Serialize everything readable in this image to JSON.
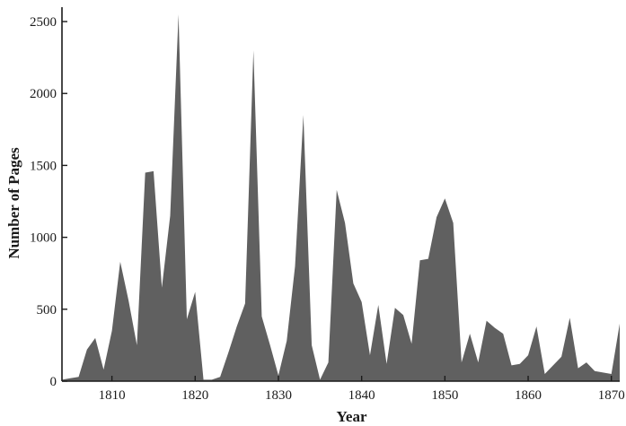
{
  "chart_data": {
    "type": "area",
    "title": "",
    "xlabel": "Year",
    "ylabel": "Number of Pages",
    "xlim": [
      1804,
      1871
    ],
    "ylim": [
      0,
      2600
    ],
    "x_ticks": [
      1810,
      1820,
      1830,
      1840,
      1850,
      1860,
      1870
    ],
    "y_ticks": [
      0,
      500,
      1000,
      1500,
      2000,
      2500
    ],
    "grid": false,
    "legend": "none",
    "fill_color": "#606060",
    "x": [
      1804,
      1805,
      1806,
      1807,
      1808,
      1809,
      1810,
      1811,
      1812,
      1813,
      1814,
      1815,
      1816,
      1817,
      1818,
      1819,
      1820,
      1821,
      1822,
      1823,
      1824,
      1825,
      1826,
      1827,
      1828,
      1829,
      1830,
      1831,
      1832,
      1833,
      1834,
      1835,
      1836,
      1837,
      1838,
      1839,
      1840,
      1841,
      1842,
      1843,
      1844,
      1845,
      1846,
      1847,
      1848,
      1849,
      1850,
      1851,
      1852,
      1853,
      1854,
      1855,
      1856,
      1857,
      1858,
      1859,
      1860,
      1861,
      1862,
      1863,
      1864,
      1865,
      1866,
      1867,
      1868,
      1869,
      1870,
      1871
    ],
    "values": [
      10,
      20,
      30,
      220,
      300,
      80,
      350,
      830,
      560,
      250,
      1450,
      1460,
      650,
      1150,
      2550,
      430,
      620,
      10,
      10,
      30,
      200,
      380,
      540,
      2300,
      450,
      250,
      40,
      280,
      800,
      1850,
      250,
      10,
      130,
      1330,
      1100,
      680,
      550,
      180,
      530,
      120,
      510,
      460,
      260,
      840,
      850,
      1140,
      1270,
      1100,
      130,
      330,
      130,
      420,
      370,
      330,
      110,
      120,
      180,
      380,
      50,
      110,
      170,
      440,
      90,
      130,
      70,
      60,
      50,
      400
    ]
  }
}
